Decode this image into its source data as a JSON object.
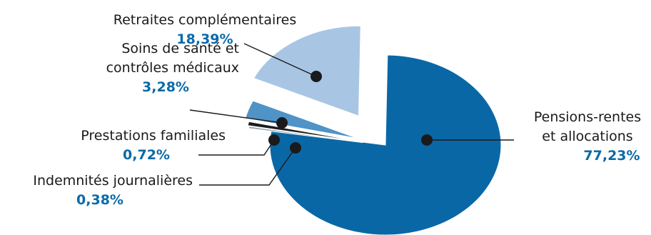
{
  "chart_data": {
    "type": "pie",
    "exploded": true,
    "legend": "none",
    "label_color": "#0a6aa8",
    "slices": [
      {
        "label_lines": [
          "Pensions-rentes",
          "et allocations"
        ],
        "value": 77.23,
        "value_text": "77,23%",
        "color": "#0a67a6"
      },
      {
        "label_lines": [
          "Indemnités journalières"
        ],
        "value": 0.38,
        "value_text": "0,38%",
        "color": "#9aa8b5"
      },
      {
        "label_lines": [
          "Prestations familiales"
        ],
        "value": 0.72,
        "value_text": "0,72%",
        "color": "#1c1c1c"
      },
      {
        "label_lines": [
          "Soins de santé et",
          "contrôles médicaux"
        ],
        "value": 3.28,
        "value_text": "3,28%",
        "color": "#4f93c7"
      },
      {
        "label_lines": [
          "Retraites complémentaires"
        ],
        "value": 18.39,
        "value_text": "18,39%",
        "color": "#a8c6e4"
      }
    ]
  }
}
